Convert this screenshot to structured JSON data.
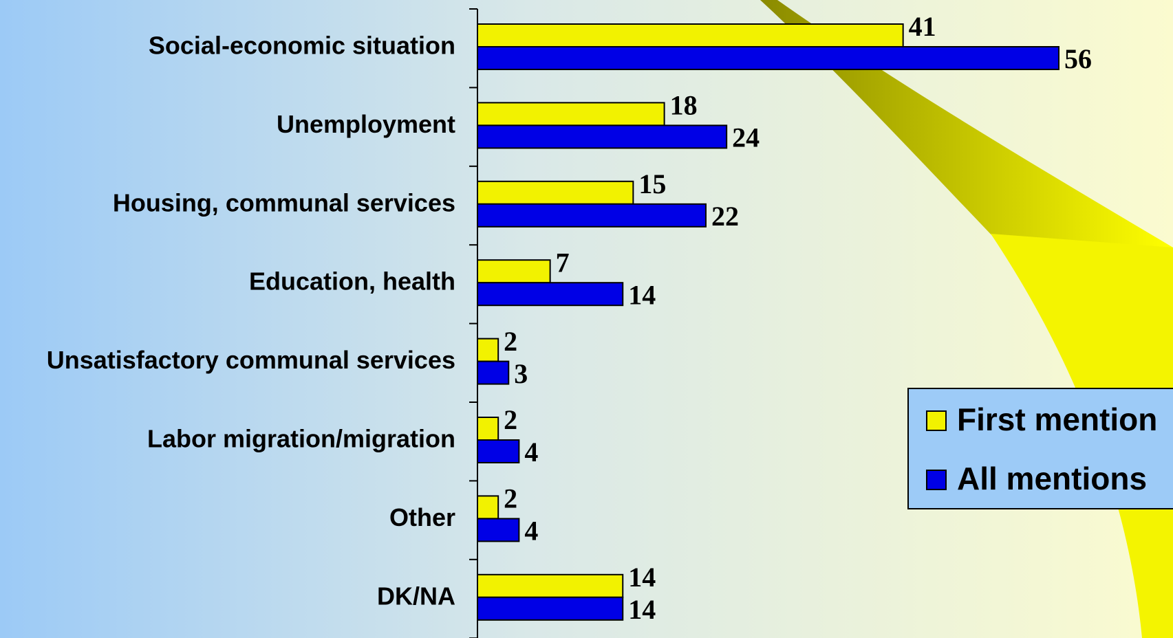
{
  "chart_data": {
    "type": "bar",
    "orientation": "horizontal",
    "categories": [
      "Social-economic situation",
      "Unemployment",
      "Housing, communal services",
      "Education, health",
      "Unsatisfactory communal services",
      "Labor migration/migration",
      "Other",
      "DK/NA"
    ],
    "series": [
      {
        "name": "First mention",
        "color": "#f2f200",
        "values": [
          41,
          18,
          15,
          7,
          2,
          2,
          2,
          14
        ]
      },
      {
        "name": "All mentions",
        "color": "#0000e6",
        "values": [
          56,
          24,
          22,
          14,
          3,
          4,
          4,
          14
        ]
      }
    ],
    "xlim": [
      0,
      67
    ],
    "legend": "right"
  }
}
